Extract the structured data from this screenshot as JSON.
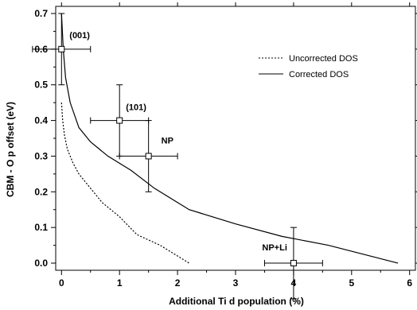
{
  "chart_data": {
    "type": "scatter",
    "xlabel": "Additional Ti d population (%)",
    "ylabel": "CBM - O p offset (eV)",
    "xlim": [
      -0.1,
      6.1
    ],
    "ylim": [
      -0.02,
      0.72
    ],
    "x_ticks": [
      "0",
      "1",
      "2",
      "3",
      "4",
      "5",
      "6"
    ],
    "y_ticks": [
      "0.0",
      "0.1",
      "0.2",
      "0.3",
      "0.4",
      "0.5",
      "0.6",
      "0.7"
    ],
    "grid": false,
    "legend_position": "top-right",
    "series": [
      {
        "name": "Uncorrected DOS",
        "style": "dotted",
        "x": [
          0.0,
          0.02,
          0.05,
          0.1,
          0.2,
          0.3,
          0.5,
          0.7,
          1.0,
          1.3,
          1.7,
          2.2
        ],
        "y": [
          0.45,
          0.4,
          0.36,
          0.32,
          0.28,
          0.25,
          0.21,
          0.17,
          0.13,
          0.08,
          0.05,
          0.0
        ]
      },
      {
        "name": "Corrected DOS",
        "style": "solid",
        "x": [
          0.0,
          0.03,
          0.07,
          0.15,
          0.3,
          0.5,
          0.8,
          1.2,
          1.6,
          2.2,
          3.0,
          3.8,
          4.6,
          5.8
        ],
        "y": [
          0.7,
          0.6,
          0.52,
          0.45,
          0.38,
          0.34,
          0.3,
          0.26,
          0.21,
          0.15,
          0.11,
          0.075,
          0.05,
          0.0
        ]
      }
    ],
    "points": [
      {
        "label": "(001)",
        "x": 0.0,
        "y": 0.6,
        "x_err": 0.5,
        "y_err": 0.1
      },
      {
        "label": "(101)",
        "x": 1.0,
        "y": 0.4,
        "x_err": 0.5,
        "y_err": 0.1
      },
      {
        "label": "NP",
        "x": 1.5,
        "y": 0.3,
        "x_err": 0.5,
        "y_err": 0.1
      },
      {
        "label": "NP+Li",
        "x": 4.0,
        "y": 0.0,
        "x_err": 0.5,
        "y_err": 0.1
      }
    ]
  }
}
